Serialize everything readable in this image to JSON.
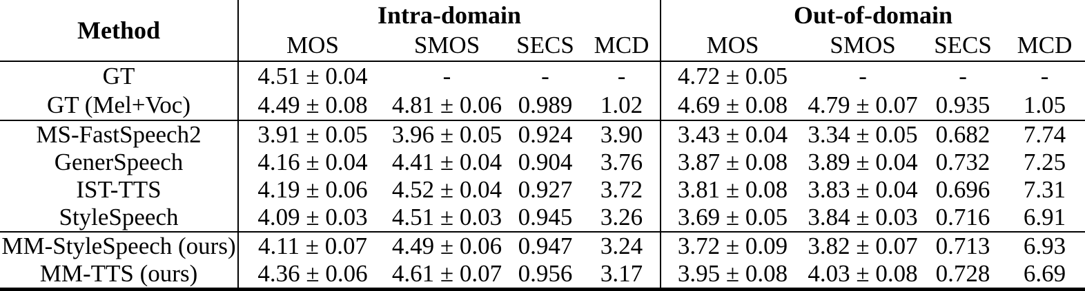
{
  "table": {
    "method_header": "Method",
    "groups": [
      {
        "label": "Intra-domain",
        "cols": [
          "MOS",
          "SMOS",
          "SECS",
          "MCD"
        ]
      },
      {
        "label": "Out-of-domain",
        "cols": [
          "MOS",
          "SMOS",
          "SECS",
          "MCD"
        ]
      }
    ],
    "sections": [
      {
        "rows": [
          {
            "method": "GT",
            "cells": [
              "4.51 ± 0.04",
              "-",
              "-",
              "-",
              "4.72 ± 0.05",
              "-",
              "-",
              "-"
            ]
          },
          {
            "method": "GT (Mel+Voc)",
            "cells": [
              "4.49 ± 0.08",
              "4.81 ± 0.06",
              "0.989",
              "1.02",
              "4.69 ± 0.08",
              "4.79 ± 0.07",
              "0.935",
              "1.05"
            ]
          }
        ]
      },
      {
        "rows": [
          {
            "method": "MS-FastSpeech2",
            "cells": [
              "3.91 ± 0.05",
              "3.96 ± 0.05",
              "0.924",
              "3.90",
              "3.43 ± 0.04",
              "3.34 ± 0.05",
              "0.682",
              "7.74"
            ]
          },
          {
            "method": "GenerSpeech",
            "cells": [
              "4.16 ± 0.04",
              "4.41 ± 0.04",
              "0.904",
              "3.76",
              "3.87 ± 0.08",
              "3.89 ± 0.04",
              "0.732",
              "7.25"
            ]
          },
          {
            "method": "IST-TTS",
            "cells": [
              "4.19 ± 0.06",
              "4.52 ± 0.04",
              "0.927",
              "3.72",
              "3.81 ± 0.08",
              "3.83 ± 0.04",
              "0.696",
              "7.31"
            ]
          },
          {
            "method": "StyleSpeech",
            "cells": [
              "4.09 ± 0.03",
              "4.51 ± 0.03",
              "0.945",
              "3.26",
              "3.69 ± 0.05",
              "3.84 ± 0.03",
              "0.716",
              "6.91"
            ]
          }
        ]
      },
      {
        "rows": [
          {
            "method": "MM-StyleSpeech (ours)",
            "cells": [
              "4.11 ± 0.07",
              "4.49 ± 0.06",
              "0.947",
              "3.24",
              "3.72 ± 0.09",
              "3.82 ± 0.07",
              "0.713",
              "6.93"
            ]
          },
          {
            "method": "MM-TTS (ours)",
            "cells": [
              "4.36 ± 0.06",
              "4.61 ± 0.07",
              "0.956",
              "3.17",
              "3.95 ± 0.08",
              "4.03 ± 0.08",
              "0.728",
              "6.69"
            ]
          }
        ]
      }
    ],
    "colors": {
      "text": "#000000",
      "background": "#ffffff",
      "rule": "#000000"
    }
  }
}
